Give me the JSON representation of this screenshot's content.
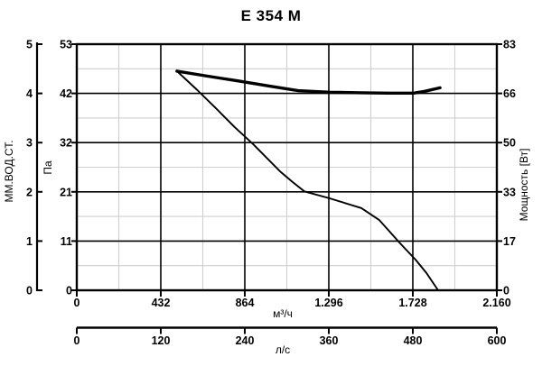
{
  "title": "E 354 M",
  "colors": {
    "background": "#ffffff",
    "text": "#000000",
    "curve": "#000000",
    "grid_major": "#000000",
    "grid_minor": "#cfcfcf"
  },
  "chart_data": {
    "type": "line",
    "title": "E 354 M",
    "grid": {
      "major": true,
      "minor": true
    },
    "axes": {
      "pressure_pa": {
        "side": "left",
        "label": "Па",
        "tick_labels": [
          "0",
          "11",
          "21",
          "32",
          "42",
          "53"
        ],
        "range": [
          0,
          53
        ]
      },
      "pressure_mm": {
        "side": "far-left",
        "label": "ММ.ВОД.СТ.",
        "tick_labels": [
          "0",
          "1",
          "2",
          "3",
          "4",
          "5"
        ],
        "range": [
          0,
          5
        ]
      },
      "power_w": {
        "side": "right",
        "label": "Мощность [Вт]",
        "tick_labels": [
          "0",
          "17",
          "33",
          "50",
          "66",
          "83"
        ],
        "range": [
          0,
          83
        ]
      },
      "flow_m3h": {
        "side": "bottom",
        "label": "м³/ч",
        "tick_labels": [
          "0",
          "432",
          "864",
          "1.296",
          "1.728",
          "2.160"
        ],
        "range": [
          0,
          2160
        ]
      },
      "flow_ls": {
        "side": "bottom-secondary",
        "label": "л/с",
        "tick_labels": [
          "0",
          "120",
          "240",
          "360",
          "480",
          "600"
        ],
        "range": [
          0,
          600
        ]
      }
    },
    "series": [
      {
        "name": "pressure-curve",
        "y_axis": "pressure_pa",
        "x_axis": "flow_m3h",
        "style": "thin",
        "points": [
          [
            515,
            47.2
          ],
          [
            618,
            43.2
          ],
          [
            720,
            39.0
          ],
          [
            810,
            35.2
          ],
          [
            906,
            31.5
          ],
          [
            1045,
            25.6
          ],
          [
            1110,
            23.3
          ],
          [
            1170,
            21.3
          ],
          [
            1300,
            19.8
          ],
          [
            1463,
            17.7
          ],
          [
            1556,
            15.1
          ],
          [
            1663,
            10.1
          ],
          [
            1742,
            6.6
          ],
          [
            1798,
            3.7
          ],
          [
            1858,
            0
          ]
        ]
      },
      {
        "name": "power-curve",
        "y_axis": "power_w",
        "x_axis": "flow_m3h",
        "style": "thick",
        "points": [
          [
            515,
            73.9
          ],
          [
            673,
            72.2
          ],
          [
            831,
            70.6
          ],
          [
            989,
            68.9
          ],
          [
            1138,
            67.3
          ],
          [
            1301,
            66.8
          ],
          [
            1463,
            66.6
          ],
          [
            1603,
            66.5
          ],
          [
            1733,
            66.5
          ],
          [
            1789,
            67.1
          ],
          [
            1868,
            68.3
          ]
        ]
      }
    ]
  }
}
